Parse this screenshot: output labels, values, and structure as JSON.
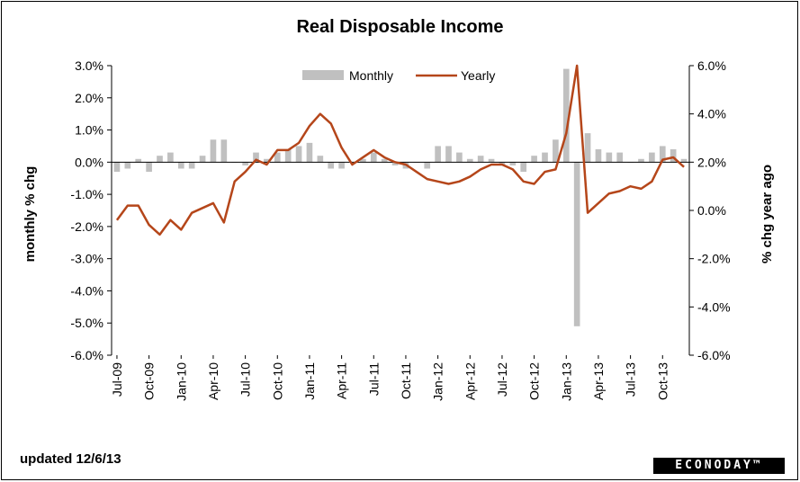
{
  "chart_data": {
    "type": "bar+line",
    "title": "Real Disposable  Income",
    "footer": "updated 12/6/13",
    "logo": "ECONODAY™",
    "left_axis": {
      "label": "monthly % chg",
      "ylim": [
        -6,
        3
      ],
      "ticks": [
        "3.0%",
        "2.0%",
        "1.0%",
        "0.0%",
        "-1.0%",
        "-2.0%",
        "-3.0%",
        "-4.0%",
        "-5.0%",
        "-6.0%"
      ]
    },
    "right_axis": {
      "label": "% chg year ago",
      "ylim": [
        -6,
        6
      ],
      "ticks": [
        "6.0%",
        "4.0%",
        "2.0%",
        "0.0%",
        "-2.0%",
        "-4.0%",
        "-6.0%"
      ]
    },
    "x_tick_labels": [
      "Jul-09",
      "Oct-09",
      "Jan-10",
      "Apr-10",
      "Jul-10",
      "Oct-10",
      "Jan-11",
      "Apr-11",
      "Jul-11",
      "Oct-11",
      "Jan-12",
      "Apr-12",
      "Jul-12",
      "Oct-12",
      "Jan-13",
      "Apr-13",
      "Jul-13",
      "Oct-13"
    ],
    "legend_position": "top",
    "grid": false,
    "series": [
      {
        "name": "Monthly",
        "type": "bar",
        "axis": "left",
        "color": "#c0c0c0",
        "values": [
          -0.3,
          -0.2,
          0.1,
          -0.3,
          0.2,
          0.3,
          -0.2,
          -0.2,
          0.2,
          0.7,
          0.7,
          0.0,
          -0.1,
          0.3,
          0.1,
          0.3,
          0.4,
          0.5,
          0.6,
          0.2,
          -0.2,
          -0.2,
          0.0,
          0.1,
          0.3,
          0.1,
          -0.1,
          -0.2,
          0.0,
          -0.2,
          0.5,
          0.5,
          0.3,
          0.1,
          0.2,
          0.1,
          -0.1,
          -0.1,
          -0.3,
          0.2,
          0.3,
          0.7,
          2.9,
          -5.1,
          0.9,
          0.4,
          0.3,
          0.3,
          0.0,
          0.1,
          0.3,
          0.5,
          0.4,
          0.1
        ]
      },
      {
        "name": "Yearly",
        "type": "line",
        "axis": "right",
        "color": "#b5461a",
        "values": [
          -0.4,
          0.2,
          0.2,
          -0.6,
          -1.0,
          -0.4,
          -0.8,
          -0.1,
          0.1,
          0.3,
          -0.5,
          1.2,
          1.6,
          2.1,
          1.9,
          2.5,
          2.5,
          2.8,
          3.5,
          4.0,
          3.6,
          2.6,
          1.9,
          2.2,
          2.5,
          2.2,
          2.0,
          1.9,
          1.6,
          1.3,
          1.2,
          1.1,
          1.2,
          1.4,
          1.7,
          1.9,
          1.9,
          1.7,
          1.2,
          1.1,
          1.6,
          1.7,
          3.2,
          6.0,
          -0.1,
          0.3,
          0.7,
          0.8,
          1.0,
          0.9,
          1.2,
          2.1,
          2.2,
          1.8
        ]
      }
    ]
  }
}
